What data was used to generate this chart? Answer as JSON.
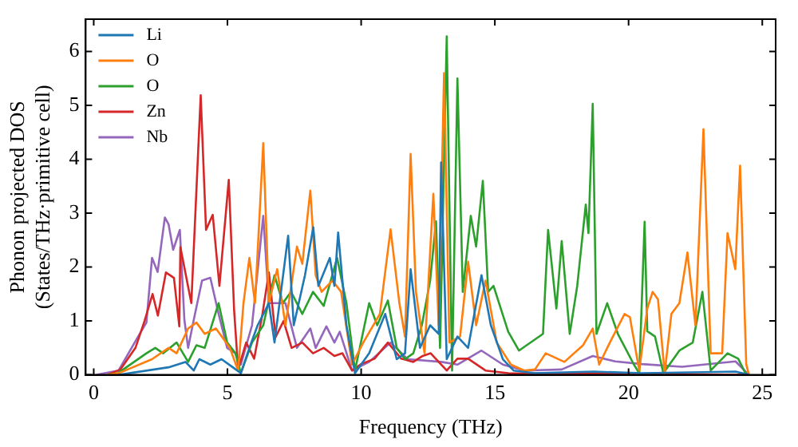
{
  "chart_data": {
    "type": "line",
    "xlabel": "Frequency (THz)",
    "ylabel": "Phonon projected DOS\n(States/THz·primitive cell)",
    "xlim": [
      -0.3,
      25.5
    ],
    "ylim": [
      0,
      6.6
    ],
    "xticks": [
      0,
      5,
      10,
      15,
      20,
      25
    ],
    "yticks": [
      0,
      1,
      2,
      3,
      4,
      5,
      6
    ],
    "legend": "top left",
    "grid": false,
    "marker": "none",
    "line_style": "solid",
    "series": [
      {
        "name": "Li",
        "color": "#1f77b4",
        "x": [
          0.93,
          2.8,
          3.43,
          3.74,
          3.95,
          4.36,
          4.78,
          5.2,
          5.5,
          5.82,
          6.13,
          6.55,
          6.76,
          7.27,
          7.48,
          7.9,
          8.21,
          8.4,
          8.83,
          9.0,
          9.14,
          9.45,
          9.77,
          10.3,
          10.9,
          11.33,
          11.64,
          11.85,
          12.2,
          12.58,
          12.9,
          12.99,
          13.2,
          13.6,
          14.0,
          14.5,
          14.85,
          15.3,
          15.7,
          16.5,
          18.7,
          20.5,
          22.8,
          24.0,
          24.5
        ],
        "values": [
          0,
          0.14,
          0.24,
          0.08,
          0.29,
          0.19,
          0.29,
          0.14,
          0.03,
          0.5,
          0.92,
          1.33,
          0.6,
          2.58,
          0.92,
          1.85,
          2.74,
          1.65,
          2.17,
          1.65,
          2.64,
          0.92,
          0.03,
          0.4,
          1.13,
          0.29,
          0.4,
          1.96,
          0.5,
          0.92,
          0.76,
          3.94,
          0.29,
          0.71,
          0.5,
          1.85,
          0.92,
          0.29,
          0.08,
          0.03,
          0.06,
          0.03,
          0.05,
          0.06,
          0
        ]
      },
      {
        "name": "O",
        "color": "#ff7f0e",
        "x": [
          0.5,
          0.93,
          2.18,
          2.8,
          3.1,
          3.53,
          3.84,
          4.15,
          4.57,
          5.09,
          5.4,
          5.6,
          5.82,
          6.03,
          6.34,
          6.55,
          6.86,
          7.17,
          7.6,
          7.8,
          8.1,
          8.3,
          8.52,
          8.93,
          9.25,
          9.66,
          10.08,
          10.7,
          11.1,
          11.43,
          11.64,
          11.85,
          12.05,
          12.37,
          12.7,
          12.9,
          13.1,
          13.3,
          13.7,
          14.0,
          14.3,
          14.65,
          15.07,
          15.6,
          16.1,
          16.5,
          16.9,
          17.6,
          18.3,
          18.66,
          18.9,
          19.3,
          19.85,
          20.05,
          20.4,
          20.7,
          20.9,
          21.1,
          21.35,
          21.6,
          21.9,
          22.2,
          22.5,
          22.8,
          23.07,
          23.5,
          23.7,
          23.99,
          24.17,
          24.4,
          24.5
        ],
        "values": [
          0,
          0.03,
          0.29,
          0.5,
          0.4,
          0.86,
          0.97,
          0.76,
          0.86,
          0.5,
          0.08,
          1.33,
          2.17,
          1.33,
          4.3,
          1.33,
          1.96,
          0.92,
          2.38,
          2.06,
          3.42,
          1.85,
          1.54,
          1.75,
          1.54,
          0.19,
          0.6,
          1.13,
          2.7,
          1.33,
          0.71,
          4.1,
          1.54,
          0.4,
          3.36,
          0.92,
          5.6,
          0.6,
          0.71,
          2.1,
          0.92,
          1.75,
          0.6,
          0.19,
          0.08,
          0.1,
          0.4,
          0.24,
          0.55,
          0.86,
          0.19,
          0.6,
          1.13,
          1.07,
          0.08,
          1.23,
          1.54,
          1.4,
          0.03,
          1.13,
          1.33,
          2.27,
          0.92,
          4.56,
          0.4,
          0.4,
          2.63,
          1.96,
          3.88,
          0.2,
          0
        ]
      },
      {
        "name": "O",
        "color": "#2ca02c",
        "x": [
          0.5,
          0.9,
          1.97,
          2.3,
          2.6,
          3.1,
          3.53,
          3.84,
          4.15,
          4.67,
          4.99,
          5.3,
          5.5,
          5.92,
          6.34,
          6.76,
          7.07,
          7.38,
          7.8,
          8.2,
          8.6,
          9.1,
          9.45,
          9.77,
          10.3,
          10.6,
          11.0,
          11.33,
          11.64,
          11.95,
          12.27,
          12.58,
          12.8,
          12.95,
          13.2,
          13.4,
          13.6,
          13.8,
          14.1,
          14.3,
          14.55,
          14.75,
          14.95,
          15.5,
          15.9,
          16.8,
          16.99,
          17.3,
          17.5,
          17.8,
          18.08,
          18.4,
          18.5,
          18.66,
          18.8,
          19.2,
          19.6,
          20.2,
          20.4,
          20.6,
          20.7,
          20.99,
          21.3,
          21.9,
          22.4,
          22.76,
          23.07,
          23.7,
          24.1,
          24.4
        ],
        "values": [
          0,
          0.03,
          0.4,
          0.5,
          0.4,
          0.6,
          0.24,
          0.55,
          0.5,
          1.33,
          0.6,
          0.4,
          0.03,
          0.6,
          0.92,
          1.85,
          1.33,
          1.54,
          1.13,
          1.54,
          1.28,
          2.17,
          1.33,
          0.08,
          1.33,
          0.92,
          1.38,
          0.5,
          0.29,
          0.4,
          0.92,
          1.75,
          2.85,
          0.5,
          6.28,
          0.08,
          5.5,
          1.54,
          2.95,
          2.38,
          3.6,
          1.54,
          1.65,
          0.8,
          0.45,
          0.76,
          2.69,
          1.23,
          2.48,
          0.76,
          1.65,
          3.16,
          2.63,
          5.03,
          0.76,
          1.33,
          0.76,
          0.19,
          0.03,
          2.84,
          0.81,
          0.71,
          0.03,
          0.45,
          0.6,
          1.54,
          0.08,
          0.4,
          0.3,
          0
        ]
      },
      {
        "name": "Zn",
        "color": "#d62728",
        "x": [
          0.5,
          1.0,
          1.56,
          1.9,
          2.2,
          2.4,
          2.7,
          3.0,
          3.2,
          3.24,
          3.65,
          4.0,
          4.2,
          4.45,
          4.7,
          5.05,
          5.25,
          5.4,
          5.7,
          6.0,
          6.3,
          6.55,
          6.8,
          7.1,
          7.4,
          7.8,
          8.2,
          8.6,
          9.0,
          9.3,
          9.66,
          10.0,
          10.5,
          11.0,
          11.5,
          11.95,
          12.3,
          12.6,
          13.2,
          13.6,
          14.0,
          14.65,
          15.5,
          20.0,
          24.5
        ],
        "values": [
          0,
          0.1,
          0.5,
          1.0,
          1.5,
          1.1,
          1.9,
          1.8,
          0.9,
          2.37,
          1.33,
          5.19,
          2.69,
          2.97,
          1.65,
          3.62,
          1.2,
          0.1,
          0.6,
          0.3,
          1.1,
          1.9,
          0.7,
          1.0,
          0.5,
          0.6,
          0.4,
          0.5,
          0.35,
          0.4,
          0.08,
          0.2,
          0.3,
          0.6,
          0.3,
          0.24,
          0.35,
          0.4,
          0.08,
          0.3,
          0.3,
          0.08,
          0.03,
          0.02,
          0
        ]
      },
      {
        "name": "Nb",
        "color": "#9467bd",
        "x": [
          0.1,
          0.93,
          1.66,
          1.97,
          2.18,
          2.39,
          2.66,
          2.8,
          2.97,
          3.22,
          3.39,
          3.53,
          3.74,
          4.05,
          4.36,
          4.67,
          4.99,
          5.3,
          5.5,
          5.92,
          6.34,
          6.55,
          7.17,
          7.6,
          8.1,
          8.3,
          8.7,
          9.0,
          9.2,
          9.66,
          10.3,
          11.1,
          11.74,
          13.0,
          13.6,
          14.5,
          15.3,
          16.1,
          17.5,
          18.66,
          19.5,
          20.5,
          22.0,
          24.0,
          24.5
        ],
        "values": [
          0,
          0.08,
          0.71,
          0.97,
          2.17,
          1.91,
          2.92,
          2.79,
          2.32,
          2.69,
          1.02,
          0.5,
          1.02,
          1.75,
          1.8,
          1.13,
          0.5,
          0.4,
          0.19,
          0.92,
          2.95,
          1.33,
          1.33,
          0.5,
          0.86,
          0.5,
          0.9,
          0.6,
          0.8,
          0.08,
          0.24,
          0.6,
          0.29,
          0.24,
          0.19,
          0.45,
          0.19,
          0.08,
          0.1,
          0.35,
          0.25,
          0.2,
          0.15,
          0.25,
          0
        ]
      }
    ]
  }
}
